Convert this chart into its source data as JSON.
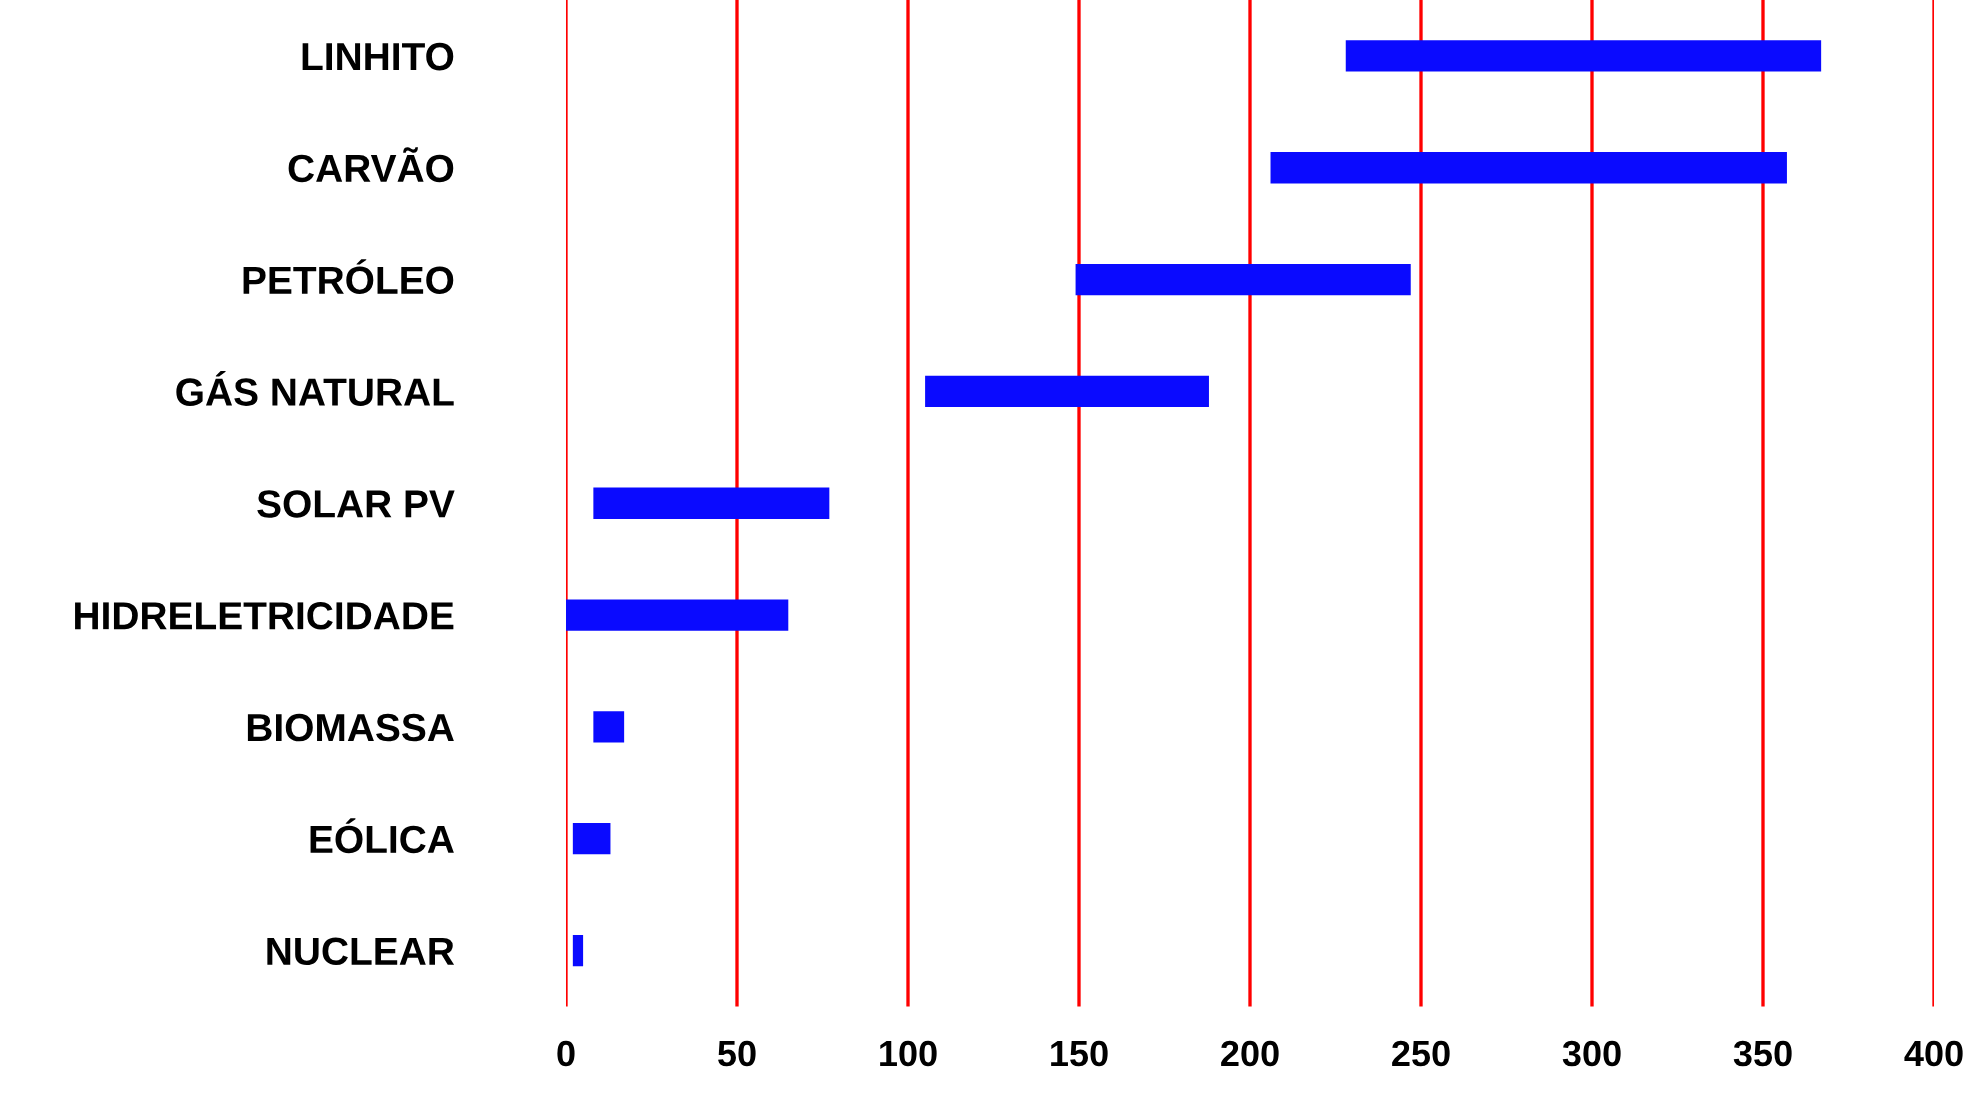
{
  "chart_data": {
    "type": "bar",
    "orientation": "horizontal",
    "categories": [
      "LINHITO",
      "CARVÃO",
      "PETRÓLEO",
      "GÁS NATURAL",
      "SOLAR PV",
      "HIDRELETRICIDADE",
      "BIOMASSA",
      "EÓLICA",
      "NUCLEAR"
    ],
    "base": [
      228,
      206,
      149,
      105,
      8,
      0,
      8,
      2,
      2
    ],
    "values": [
      139,
      151,
      98,
      83,
      69,
      65,
      9,
      11,
      3
    ],
    "color": "#0a0aff",
    "xlim": [
      0,
      400
    ],
    "xticks": [
      0,
      50,
      100,
      150,
      200,
      250,
      300,
      350,
      400
    ],
    "grid": "x"
  }
}
